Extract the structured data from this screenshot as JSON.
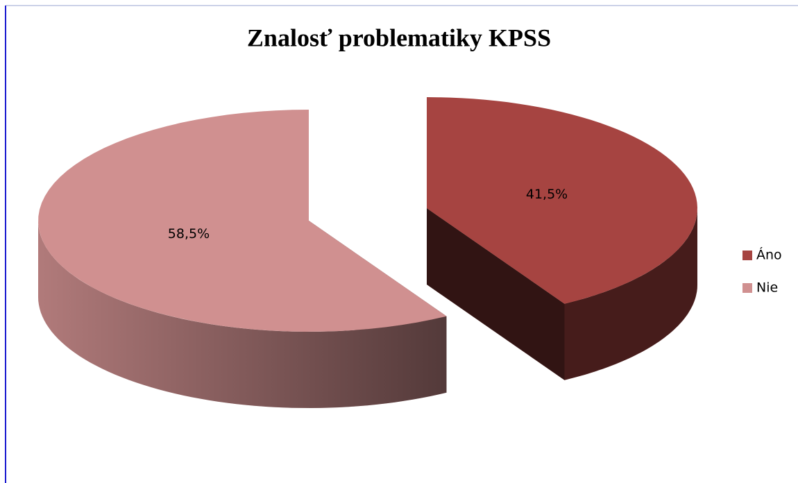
{
  "chart_data": {
    "type": "pie",
    "title": "Znalosť problematiky KPSS",
    "categories": [
      "Áno",
      "Nie"
    ],
    "values": [
      41.5,
      58.5
    ],
    "value_labels": [
      "41,5%",
      "58,5%"
    ],
    "colors": [
      "#a64441",
      "#d09090"
    ],
    "legend": "right"
  }
}
